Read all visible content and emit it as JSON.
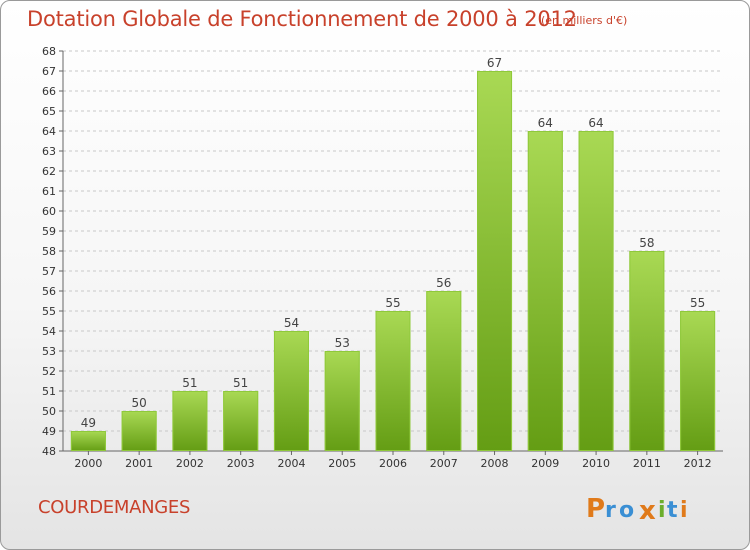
{
  "header": {
    "title": "Dotation Globale de Fonctionnement de 2000 à 2012",
    "unit": "(en milliers d'€)"
  },
  "footer": {
    "commune": "COURDEMANGES",
    "brand": "Proxiti"
  },
  "colors": {
    "title": "#c8412b",
    "bar_light": "#a9d954",
    "bar_dark": "#649d14",
    "grid": "#c8c8c8"
  },
  "chart_data": {
    "type": "bar",
    "categories": [
      "2000",
      "2001",
      "2002",
      "2003",
      "2004",
      "2005",
      "2006",
      "2007",
      "2008",
      "2009",
      "2010",
      "2011",
      "2012"
    ],
    "values": [
      49,
      50,
      51,
      51,
      54,
      53,
      55,
      56,
      67,
      64,
      64,
      58,
      55
    ],
    "title": "Dotation Globale de Fonctionnement de 2000 à 2012",
    "subtitle": "(en milliers d'€)",
    "xlabel": "",
    "ylabel": "",
    "ylim": [
      48,
      68
    ],
    "yticks": [
      48,
      49,
      50,
      51,
      52,
      53,
      54,
      55,
      56,
      57,
      58,
      59,
      60,
      61,
      62,
      63,
      64,
      65,
      66,
      67,
      68
    ],
    "grid": "horizontal dashed",
    "data_labels": true
  }
}
